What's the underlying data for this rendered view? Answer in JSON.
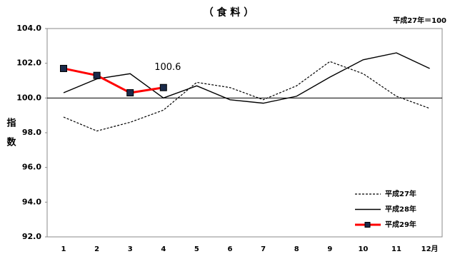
{
  "chart_data": {
    "type": "line",
    "title": "（ 食 料 ）",
    "note": "平成27年＝100",
    "y_label": "指数",
    "categories": [
      "1",
      "2",
      "3",
      "4",
      "5",
      "6",
      "7",
      "8",
      "9",
      "10",
      "11",
      "12月"
    ],
    "series": [
      {
        "name": "平成27年",
        "color": "#000000",
        "style": "dashed",
        "values": [
          98.9,
          98.1,
          98.6,
          99.3,
          100.9,
          100.6,
          99.9,
          100.7,
          102.1,
          101.4,
          100.1,
          99.4
        ]
      },
      {
        "name": "平成28年",
        "color": "#000000",
        "style": "solid",
        "values": [
          100.3,
          101.1,
          101.4,
          100.0,
          100.7,
          99.9,
          99.7,
          100.1,
          101.2,
          102.2,
          102.6,
          101.7
        ]
      },
      {
        "name": "平成29年",
        "color": "#ff0000",
        "style": "marker",
        "values": [
          101.7,
          101.3,
          100.3,
          100.6,
          null,
          null,
          null,
          null,
          null,
          null,
          null,
          null
        ]
      }
    ],
    "data_label": {
      "series": 2,
      "index": 3
    },
    "hline": 100,
    "ylim": [
      92,
      104
    ],
    "yticks": [
      {
        "value": 92,
        "label": "92.0"
      },
      {
        "value": 94,
        "label": "94.0"
      },
      {
        "value": 96,
        "label": "96.0"
      },
      {
        "value": 98,
        "label": "98.0"
      },
      {
        "value": 100,
        "label": "100.0"
      },
      {
        "value": 102,
        "label": "102.0"
      },
      {
        "value": 104,
        "label": "104.0"
      }
    ],
    "legend": "lower right"
  }
}
